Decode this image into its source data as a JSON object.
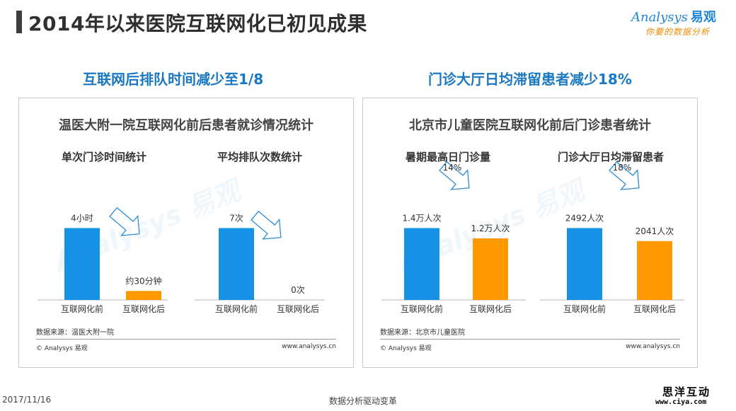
{
  "header": {
    "title": "2014年以来医院互联网化已初见成果",
    "logo_text": "Analysys",
    "logo_cn": "易观",
    "logo_slogan": "你要的数据分析"
  },
  "left": {
    "headline": "互联网后排队时间减少至1/8",
    "panel_title": "温医大附一院互联网化前后患者就诊情况统计",
    "source": "数据来源：温医大附一院",
    "copyright": "© Analysys 易观",
    "website": "www.analysys.cn"
  },
  "right": {
    "headline": "门诊大厅日均滞留患者减少18%",
    "panel_title": "北京市儿童医院互联网化前后门诊患者统计",
    "source": "数据来源：北京市儿童医院",
    "copyright": "© Analysys 易观",
    "website": "www.analysys.cn"
  },
  "footer": {
    "date": "2017/11/16",
    "slogan": "数据分析驱动变革",
    "corner_cn": "思洋互动",
    "corner_url": "www.ciya.com"
  },
  "colors": {
    "before": "#1592e6",
    "after": "#ff9900",
    "arrow": "#1f86d8"
  },
  "chart_data": [
    {
      "type": "bar",
      "title": "单次门诊时间统计",
      "categories": [
        "互联网化前",
        "互联网化后"
      ],
      "values": [
        240,
        30
      ],
      "value_labels": [
        "4小时",
        "约30分钟"
      ],
      "ylim": [
        0,
        300
      ]
    },
    {
      "type": "bar",
      "title": "平均排队次数统计",
      "categories": [
        "互联网化前",
        "互联网化后"
      ],
      "values": [
        7,
        0
      ],
      "value_labels": [
        "7次",
        "0次"
      ],
      "ylim": [
        0,
        8.75
      ]
    },
    {
      "type": "bar",
      "title": "暑期最高日门诊量",
      "categories": [
        "互联网化前",
        "互联网化后"
      ],
      "values": [
        1.4,
        1.2
      ],
      "value_labels": [
        "1.4万人次",
        "1.2万人次"
      ],
      "change_label": "14%",
      "ylim": [
        0,
        1.75
      ]
    },
    {
      "type": "bar",
      "title": "门诊大厅日均滞留患者",
      "categories": [
        "互联网化前",
        "互联网化后"
      ],
      "values": [
        2492,
        2041
      ],
      "value_labels": [
        "2492人次",
        "2041人次"
      ],
      "change_label": "18%",
      "ylim": [
        0,
        3115
      ]
    }
  ]
}
